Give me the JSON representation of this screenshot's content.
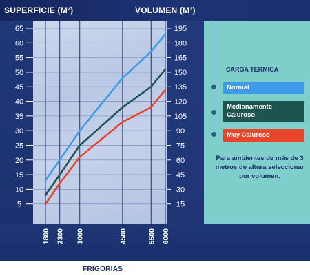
{
  "chart_data": {
    "type": "line",
    "left_axis_title": "SUPERFICIE (M²)",
    "right_axis_title": "VOLUMEN (M³)",
    "xlabel": "FRIGORIAS",
    "x_ticks": [
      1800,
      2300,
      3000,
      4500,
      5500,
      6000
    ],
    "x_tick_labels": [
      "1800",
      "2300",
      "3000",
      "4500",
      "5500",
      "6000"
    ],
    "y_left_ticks": [
      "5",
      "10",
      "15",
      "20",
      "25",
      "30",
      "35",
      "40",
      "45",
      "50",
      "55",
      "60",
      "65"
    ],
    "y_left_range": [
      0,
      65
    ],
    "y_right_ticks": [
      "15",
      "30",
      "45",
      "60",
      "75",
      "90",
      "105",
      "120",
      "135",
      "150",
      "165",
      "180",
      "195"
    ],
    "y_right_range": [
      0,
      195
    ],
    "grid": true,
    "legend_title": "CARGA TERMICA",
    "series": [
      {
        "name": "Normal",
        "color": "#3d9be9",
        "points": [
          [
            1800,
            13
          ],
          [
            2300,
            20
          ],
          [
            3000,
            30
          ],
          [
            4500,
            48
          ],
          [
            5500,
            57
          ],
          [
            6000,
            63
          ]
        ]
      },
      {
        "name": "Medianamente Caluroso",
        "color": "#1e5450",
        "points": [
          [
            1800,
            8
          ],
          [
            2300,
            15
          ],
          [
            3000,
            25
          ],
          [
            4500,
            38
          ],
          [
            5500,
            45
          ],
          [
            6000,
            51
          ]
        ]
      },
      {
        "name": "Muy Caluroso",
        "color": "#e8452a",
        "points": [
          [
            1800,
            5
          ],
          [
            2300,
            12
          ],
          [
            3000,
            21
          ],
          [
            4500,
            33
          ],
          [
            5500,
            38
          ],
          [
            6000,
            44
          ]
        ]
      }
    ],
    "note": "Para ambientes de más de 3 metros de altura seleccionar por volumen."
  }
}
